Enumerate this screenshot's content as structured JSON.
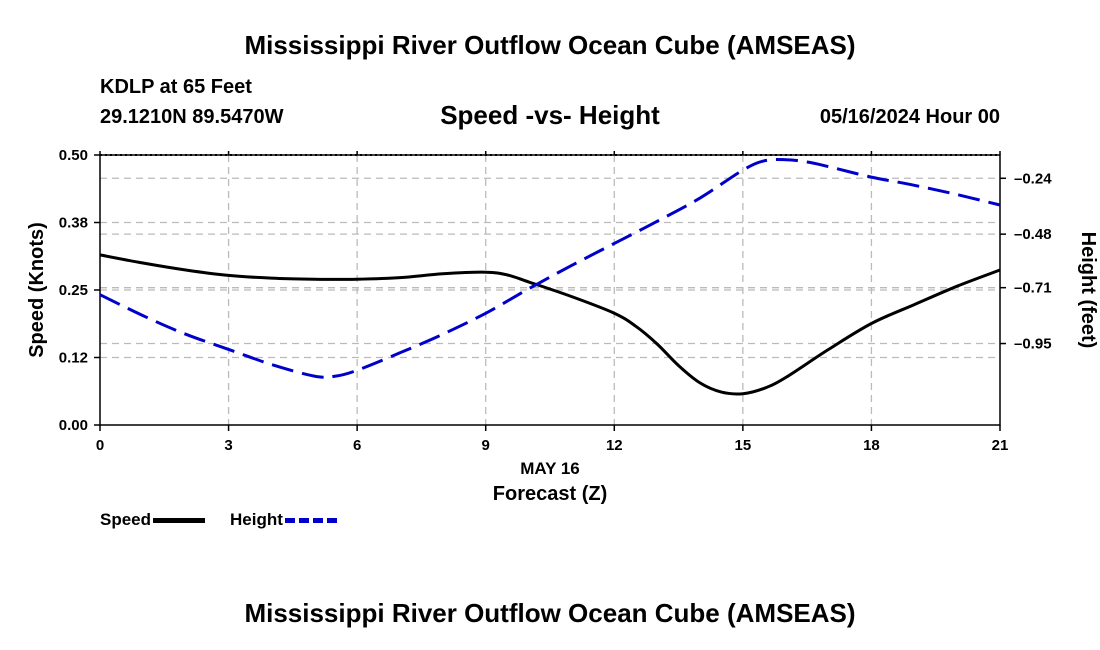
{
  "header": {
    "title": "Mississippi River Outflow Ocean Cube (AMSEAS)",
    "station": "KDLP at 65 Feet",
    "coords": "29.1210N  89.5470W",
    "subtitle": "Speed -vs- Height",
    "datetime": "05/16/2024 Hour 00"
  },
  "footer": {
    "title": "Mississippi River Outflow Ocean Cube (AMSEAS)"
  },
  "legend": {
    "speed_label": "Speed",
    "height_label": "Height"
  },
  "colors": {
    "speed": "#000000",
    "height": "#0000cc",
    "grid": "#bbbbbb"
  },
  "chart_data": {
    "type": "line",
    "title": "Speed -vs- Height",
    "xlabel": "Forecast (Z)",
    "xlabel_date": "MAY 16",
    "ylabel_left": "Speed (Knots)",
    "ylabel_right": "Height (feet)",
    "xlim": [
      0,
      21
    ],
    "ylim_left": [
      0,
      0.5
    ],
    "ylim_right": [
      -1.3,
      -0.14
    ],
    "x_ticks": [
      0,
      3,
      6,
      9,
      12,
      15,
      18,
      21
    ],
    "x_tick_labels": [
      "0",
      "3",
      "6",
      "9",
      "12",
      "15",
      "18",
      "21"
    ],
    "y_ticks_left": [
      0.0,
      0.125,
      0.25,
      0.375,
      0.5
    ],
    "y_tick_labels_left": [
      "0.00",
      "0.12",
      "0.25",
      "0.38",
      "0.50"
    ],
    "y_ticks_right": [
      -0.24,
      -0.48,
      -0.71,
      -0.95
    ],
    "y_tick_labels_right": [
      "-0.24",
      "-0.48",
      "-0.71",
      "-0.95"
    ],
    "grid": true,
    "series": [
      {
        "name": "Speed",
        "axis": "left",
        "style": "solid",
        "x": [
          0,
          1,
          2,
          3,
          4,
          5,
          6,
          7,
          8,
          9,
          9.5,
          10,
          11,
          12,
          12.5,
          13,
          13.5,
          14,
          14.5,
          15,
          15.5,
          16,
          17,
          18,
          19,
          20,
          21
        ],
        "values": [
          0.315,
          0.3,
          0.287,
          0.277,
          0.272,
          0.27,
          0.27,
          0.273,
          0.28,
          0.283,
          0.278,
          0.265,
          0.238,
          0.207,
          0.183,
          0.15,
          0.11,
          0.078,
          0.061,
          0.058,
          0.068,
          0.088,
          0.14,
          0.188,
          0.223,
          0.257,
          0.287
        ],
        "color": "#000000"
      },
      {
        "name": "Height",
        "axis": "right",
        "style": "dashed",
        "x": [
          0,
          1,
          2,
          3,
          4,
          5,
          5.5,
          6,
          7,
          8,
          9,
          10,
          11,
          12,
          13,
          14,
          15,
          15.5,
          16,
          16.5,
          17,
          18,
          19,
          20,
          21
        ],
        "values": [
          -0.74,
          -0.83,
          -0.91,
          -0.975,
          -1.04,
          -1.09,
          -1.09,
          -1.065,
          -0.99,
          -0.91,
          -0.82,
          -0.715,
          -0.615,
          -0.52,
          -0.425,
          -0.325,
          -0.205,
          -0.165,
          -0.16,
          -0.17,
          -0.19,
          -0.235,
          -0.27,
          -0.31,
          -0.355
        ],
        "color": "#0000cc"
      }
    ]
  }
}
